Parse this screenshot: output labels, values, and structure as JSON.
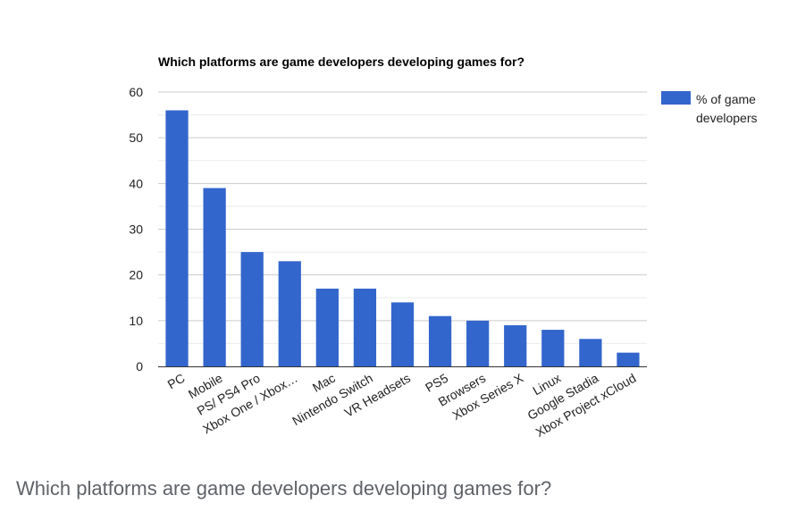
{
  "caption": "Which platforms are game developers developing games for?",
  "colors": {
    "bar": "#3366cc",
    "gridline": "#cccccc",
    "minor_gridline": "#ebebeb",
    "axis": "#333333"
  },
  "chart_data": {
    "type": "bar",
    "title": "Which platforms are game developers developing games for?",
    "xlabel": "",
    "ylabel": "",
    "categories": [
      "PC",
      "Mobile",
      "PS/ PS4 Pro",
      "Xbox One / Xbox…",
      "Mac",
      "Nintendo Switch",
      "VR Headsets",
      "PS5",
      "Browsers",
      "Xbox Series X",
      "Linux",
      "Google Stadia",
      "Xbox Project xCloud"
    ],
    "series": [
      {
        "name": "% of game developers",
        "legend_lines": [
          "% of game",
          "developers"
        ],
        "values": [
          56,
          39,
          25,
          23,
          17,
          17,
          14,
          11,
          10,
          9,
          8,
          6,
          3
        ]
      }
    ],
    "ylim": [
      0,
      60
    ],
    "yticks": [
      "0",
      "10",
      "20",
      "30",
      "40",
      "50",
      "60"
    ],
    "grid": true,
    "legend_position": "right"
  }
}
